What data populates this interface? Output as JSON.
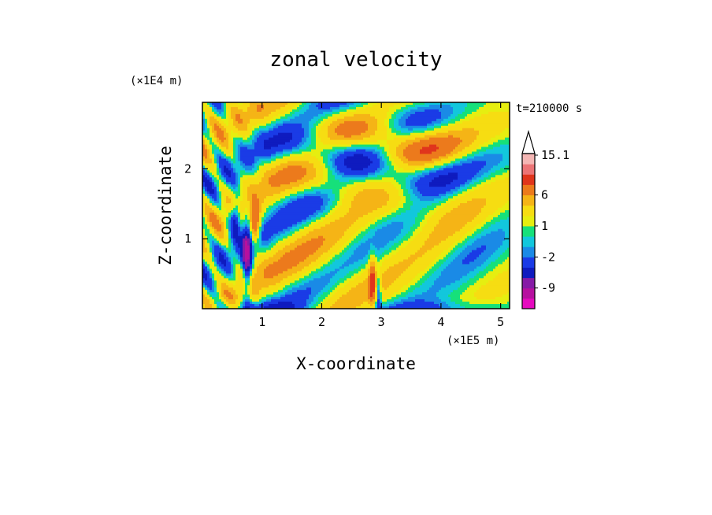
{
  "chart_data": {
    "type": "heatmap",
    "title": "zonal velocity",
    "xlabel": "X-coordinate",
    "ylabel": "Z-coordinate",
    "x_unit": "(×1E5 m)",
    "y_unit": "(×1E4 m)",
    "time_label": "t=210000 s",
    "xlim": [
      0,
      5.15
    ],
    "ylim": [
      0,
      2.95
    ],
    "x_ticks": [
      "1",
      "2",
      "3",
      "4",
      "5"
    ],
    "x_tick_values": [
      1,
      2,
      3,
      4,
      5
    ],
    "y_ticks": [
      "1",
      "2"
    ],
    "y_tick_values": [
      1,
      2
    ],
    "colorbar": {
      "labels": [
        "15.1",
        "6",
        "1",
        "-2",
        "-9"
      ],
      "label_levels": [
        15.1,
        6,
        1,
        -2,
        -9
      ],
      "levels": [
        -15,
        -12,
        -9,
        -6,
        -4,
        -2,
        -1,
        0,
        1,
        2,
        4,
        6,
        9,
        12,
        15.1
      ],
      "colors": [
        "#e60abf",
        "#b6109f",
        "#861ba6",
        "#0f1bbf",
        "#1a3be6",
        "#1a8ae6",
        "#12c7dc",
        "#16e07a",
        "#e6ee10",
        "#f6dd12",
        "#f5b416",
        "#ec7a1c",
        "#e0351c",
        "#ec7476",
        "#f4b6b4"
      ],
      "extend_max_triangle": true
    },
    "field_description": "u(x,z) zonal velocity contoured with filled levels; dominant weak positive (yellow/green) background with alternating orange/blue wave-like bands tilted from lower left to upper right, strong jets near x≈0.7 and x≈2.9"
  }
}
